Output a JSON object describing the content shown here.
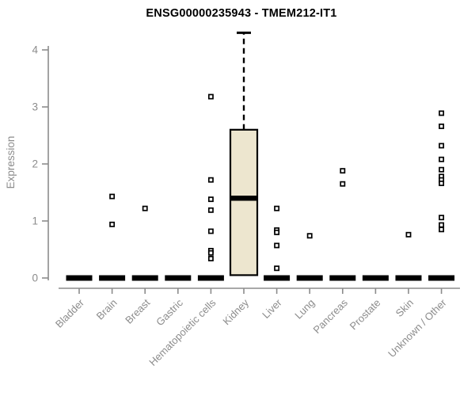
{
  "title": "ENSG00000235943 - TMEM212-IT1",
  "chart_data": {
    "type": "boxplot",
    "title": "ENSG00000235943 - TMEM212-IT1",
    "xlabel": "",
    "ylabel": "Expression",
    "ylim": [
      0,
      4.3
    ],
    "yticks": [
      0,
      1,
      2,
      3,
      4
    ],
    "grid": "off",
    "categories": [
      "Bladder",
      "Brain",
      "Breast",
      "Gastric",
      "Hematopoietic cells",
      "Kidney",
      "Liver",
      "Lung",
      "Pancreas",
      "Prostate",
      "Skin",
      "Unknown / Other"
    ],
    "series": [
      {
        "name": "Bladder",
        "q1": 0,
        "median": 0,
        "q3": 0,
        "whisker_low": 0,
        "whisker_high": 0,
        "outliers": []
      },
      {
        "name": "Brain",
        "q1": 0,
        "median": 0,
        "q3": 0,
        "whisker_low": 0,
        "whisker_high": 0,
        "outliers": [
          1.43,
          0.94
        ]
      },
      {
        "name": "Breast",
        "q1": 0,
        "median": 0,
        "q3": 0,
        "whisker_low": 0,
        "whisker_high": 0,
        "outliers": [
          1.22
        ]
      },
      {
        "name": "Gastric",
        "q1": 0,
        "median": 0,
        "q3": 0,
        "whisker_low": 0,
        "whisker_high": 0,
        "outliers": []
      },
      {
        "name": "Hematopoietic cells",
        "q1": 0,
        "median": 0,
        "q3": 0,
        "whisker_low": 0,
        "whisker_high": 0,
        "outliers": [
          3.18,
          1.72,
          1.38,
          1.19,
          0.82,
          0.48,
          0.44,
          0.34
        ]
      },
      {
        "name": "Kidney",
        "q1": 0.05,
        "median": 1.4,
        "q3": 2.6,
        "whisker_low": 0,
        "whisker_high": 4.3,
        "outliers": []
      },
      {
        "name": "Liver",
        "q1": 0,
        "median": 0,
        "q3": 0,
        "whisker_low": 0,
        "whisker_high": 0,
        "outliers": [
          1.22,
          0.84,
          0.8,
          0.57,
          0.17
        ]
      },
      {
        "name": "Lung",
        "q1": 0,
        "median": 0,
        "q3": 0,
        "whisker_low": 0,
        "whisker_high": 0,
        "outliers": [
          0.74
        ]
      },
      {
        "name": "Pancreas",
        "q1": 0,
        "median": 0,
        "q3": 0,
        "whisker_low": 0,
        "whisker_high": 0,
        "outliers": [
          1.88,
          1.65
        ]
      },
      {
        "name": "Prostate",
        "q1": 0,
        "median": 0,
        "q3": 0,
        "whisker_low": 0,
        "whisker_high": 0,
        "outliers": []
      },
      {
        "name": "Skin",
        "q1": 0,
        "median": 0,
        "q3": 0,
        "whisker_low": 0,
        "whisker_high": 0,
        "outliers": [
          0.76
        ]
      },
      {
        "name": "Unknown / Other",
        "q1": 0,
        "median": 0,
        "q3": 0,
        "whisker_low": 0,
        "whisker_high": 0,
        "outliers": [
          2.89,
          2.66,
          2.32,
          2.08,
          1.9,
          1.78,
          1.72,
          1.66,
          1.06,
          0.93,
          0.85
        ]
      }
    ],
    "colors": {
      "background": "#ffffff",
      "axis": "#8c8c8c",
      "label": "#8c8c8c",
      "title": "#000000",
      "box_fill": "#ede6cf",
      "box_border": "#000000",
      "point": "#000000"
    }
  }
}
